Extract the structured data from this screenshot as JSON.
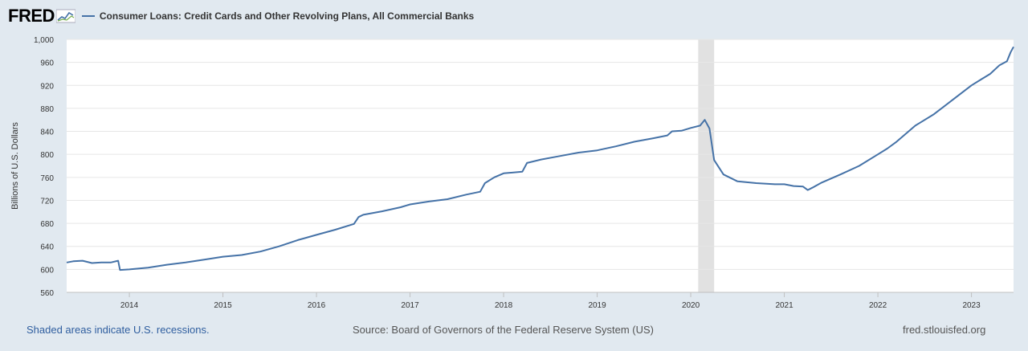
{
  "header": {
    "logo": "FRED",
    "logo_icon": "sparkline-icon"
  },
  "chart_data": {
    "type": "line",
    "title": "Consumer Loans: Credit Cards and Other Revolving Plans, All Commercial Banks",
    "xlabel": "",
    "ylabel": "Billions of U.S. Dollars",
    "ylim": [
      560,
      1000
    ],
    "xlim": [
      2013.33,
      2023.45
    ],
    "yticks": [
      560,
      600,
      640,
      680,
      720,
      760,
      800,
      840,
      880,
      920,
      960,
      1000
    ],
    "ytick_labels": [
      "560",
      "600",
      "640",
      "680",
      "720",
      "760",
      "800",
      "840",
      "880",
      "920",
      "960",
      "1,000"
    ],
    "xticks": [
      2014,
      2015,
      2016,
      2017,
      2018,
      2019,
      2020,
      2021,
      2022,
      2023
    ],
    "xtick_labels": [
      "2014",
      "2015",
      "2016",
      "2017",
      "2018",
      "2019",
      "2020",
      "2021",
      "2022",
      "2023"
    ],
    "grid": true,
    "line_color": "#4572a7",
    "recession_color": "#e1e1e1",
    "recessions": [
      [
        2020.08,
        2020.25
      ]
    ],
    "series": [
      {
        "name": "Consumer Loans: Credit Cards and Other Revolving Plans, All Commercial Banks",
        "x": [
          2013.33,
          2013.4,
          2013.5,
          2013.6,
          2013.7,
          2013.8,
          2013.88,
          2013.9,
          2014.0,
          2014.2,
          2014.4,
          2014.6,
          2014.8,
          2015.0,
          2015.2,
          2015.4,
          2015.6,
          2015.8,
          2016.0,
          2016.2,
          2016.4,
          2016.45,
          2016.5,
          2016.7,
          2016.9,
          2017.0,
          2017.2,
          2017.4,
          2017.6,
          2017.75,
          2017.8,
          2017.9,
          2018.0,
          2018.2,
          2018.25,
          2018.4,
          2018.6,
          2018.8,
          2019.0,
          2019.2,
          2019.4,
          2019.6,
          2019.75,
          2019.8,
          2019.9,
          2020.0,
          2020.1,
          2020.15,
          2020.2,
          2020.25,
          2020.35,
          2020.5,
          2020.7,
          2020.9,
          2021.0,
          2021.1,
          2021.2,
          2021.25,
          2021.3,
          2021.4,
          2021.6,
          2021.8,
          2022.0,
          2022.1,
          2022.2,
          2022.4,
          2022.6,
          2022.8,
          2023.0,
          2023.1,
          2023.2,
          2023.3,
          2023.38,
          2023.42,
          2023.45
        ],
        "values": [
          612,
          614,
          615,
          611,
          612,
          612,
          615,
          599,
          600,
          603,
          608,
          612,
          617,
          622,
          625,
          631,
          640,
          651,
          660,
          669,
          679,
          691,
          695,
          701,
          708,
          713,
          718,
          722,
          730,
          735,
          750,
          760,
          767,
          770,
          785,
          791,
          797,
          803,
          807,
          814,
          822,
          828,
          833,
          840,
          841,
          846,
          850,
          860,
          845,
          790,
          765,
          753,
          750,
          748,
          748,
          745,
          744,
          738,
          742,
          751,
          765,
          780,
          800,
          810,
          822,
          850,
          870,
          895,
          920,
          930,
          940,
          955,
          962,
          978,
          987
        ]
      }
    ]
  },
  "footer": {
    "recession_note": "Shaded areas indicate U.S. recessions.",
    "source": "Source: Board of Governors of the Federal Reserve System (US)",
    "site": "fred.stlouisfed.org"
  }
}
